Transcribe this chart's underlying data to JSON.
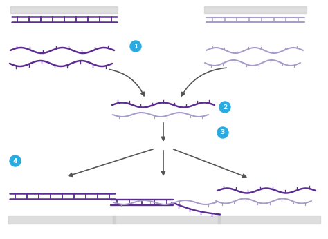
{
  "bg_color": "#ffffff",
  "dark_purple": "#5b2d8e",
  "light_purple": "#a89cc8",
  "arrow_color": "#555555",
  "badge_color": "#29abe2",
  "badge_text_color": "#ffffff",
  "gray_rect_color": "#c8c8c8",
  "fig_width": 4.74,
  "fig_height": 3.46,
  "dpi": 100
}
